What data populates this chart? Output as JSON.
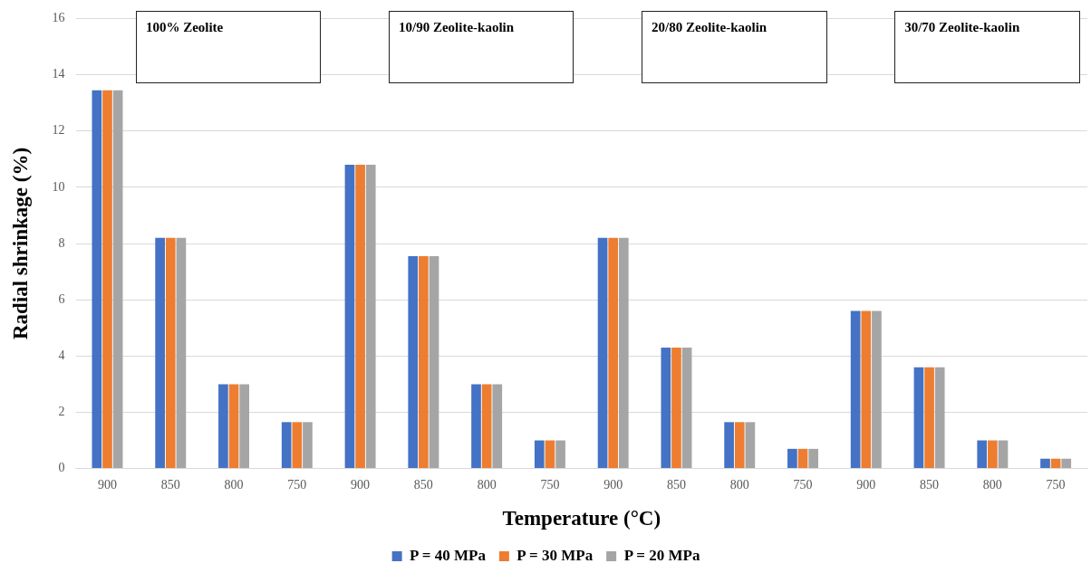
{
  "chart_data": {
    "type": "bar",
    "xlabel": "Temperature (°C)",
    "ylabel": "Radial shrinkage (%)",
    "categories": [
      "900",
      "850",
      "800",
      "750",
      "900",
      "850",
      "800",
      "750",
      "900",
      "850",
      "800",
      "750",
      "900",
      "850",
      "800",
      "750"
    ],
    "series": [
      {
        "name": "P = 40 MPa",
        "color": "#4472c4",
        "values": [
          13.45,
          8.2,
          3.0,
          1.65,
          10.8,
          7.55,
          3.0,
          1.0,
          8.2,
          4.3,
          1.65,
          0.7,
          5.6,
          3.6,
          1.0,
          0.35
        ]
      },
      {
        "name": "P = 30 MPa",
        "color": "#ed7d31",
        "values": [
          13.45,
          8.2,
          3.0,
          1.65,
          10.8,
          7.55,
          3.0,
          1.0,
          8.2,
          4.3,
          1.65,
          0.7,
          5.6,
          3.6,
          1.0,
          0.35
        ]
      },
      {
        "name": "P = 20 MPa",
        "color": "#a5a5a5",
        "values": [
          13.45,
          8.2,
          3.0,
          1.65,
          10.8,
          7.55,
          3.0,
          1.0,
          8.2,
          4.3,
          1.65,
          0.7,
          5.6,
          3.6,
          1.0,
          0.35
        ]
      }
    ],
    "ylim": [
      0,
      16
    ],
    "yticks": [
      0,
      2,
      4,
      6,
      8,
      10,
      12,
      14,
      16
    ],
    "grid": "y",
    "legend": "bottom",
    "annotations": [
      "100% Zeolite",
      "10/90 Zeolite-kaolin",
      "20/80 Zeolite-kaolin",
      "30/70 Zeolite-kaolin"
    ]
  }
}
